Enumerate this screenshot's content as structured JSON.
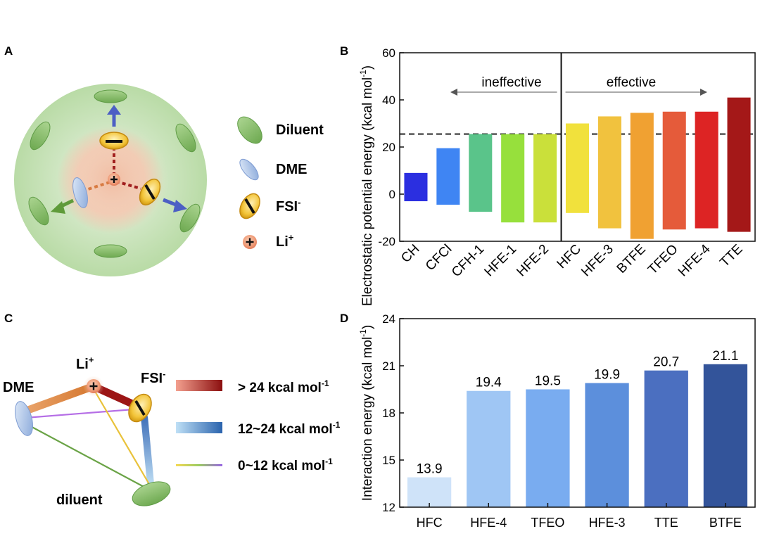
{
  "panels": {
    "a": {
      "letter": "A",
      "legend": [
        {
          "icon": "diluent-ellipse-icon",
          "label": "Diluent"
        },
        {
          "icon": "dme-ellipse-icon",
          "label": "DME"
        },
        {
          "icon": "fsi-anion-icon",
          "label": "FSI",
          "sup": "-"
        },
        {
          "icon": "li-cation-icon",
          "label": "Li",
          "sup": "+"
        }
      ]
    },
    "c": {
      "letter": "C",
      "nodes": {
        "dme": "DME",
        "li": "Li",
        "li_sup": "+",
        "fsi": "FSI",
        "fsi_sup": "-",
        "diluent": "diluent"
      },
      "legend": [
        {
          "label": "> 24 kcal mol",
          "sup": "-1",
          "gradient": [
            "#f3a08f",
            "#8b0f0f"
          ]
        },
        {
          "label": "12~24 kcal mol",
          "sup": "-1",
          "gradient": [
            "#bfe0f6",
            "#2a63ad"
          ]
        },
        {
          "label": "0~12 kcal mol",
          "sup": "-1",
          "gradient": [
            "#f4d33a",
            "#8bc34a",
            "#8a4fe0"
          ]
        }
      ]
    }
  },
  "chart_data": [
    {
      "panel": "B",
      "type": "bar",
      "subtype": "floating",
      "categories": [
        "CH",
        "CFCl",
        "CFH-1",
        "HFE-1",
        "HFE-2",
        "HFC",
        "HFE-3",
        "BTFE",
        "TFEO",
        "HFE-4",
        "TTE"
      ],
      "series": [
        {
          "ranges": [
            [
              -3,
              9
            ],
            [
              -4.5,
              19.5
            ],
            [
              -7.5,
              25.5
            ],
            [
              -12,
              25.5
            ],
            [
              -12,
              25.5
            ],
            [
              -8,
              30
            ],
            [
              -14.5,
              33
            ],
            [
              -19,
              34.5
            ],
            [
              -15,
              35
            ],
            [
              -14.5,
              35
            ],
            [
              -16,
              41
            ]
          ]
        }
      ],
      "colors": [
        "#2b2fe0",
        "#3f85f3",
        "#5ac48a",
        "#97e03c",
        "#cae03a",
        "#f1e13c",
        "#f1c23e",
        "#f0a132",
        "#e55b3a",
        "#dd2424",
        "#a41818"
      ],
      "ylabel": "Electrostatic potential energy (kcal mol",
      "ylabel_sup": "-1",
      "ylabel_tail": ")",
      "ylim": [
        -20,
        60
      ],
      "yticks": [
        -20,
        0,
        20,
        40,
        60
      ],
      "reference_line": 25.5,
      "divider_after_category": "HFE-2",
      "annotations": [
        "ineffective",
        "effective"
      ]
    },
    {
      "panel": "D",
      "type": "bar",
      "categories": [
        "HFC",
        "HFE-4",
        "TFEO",
        "HFE-3",
        "TTE",
        "BTFE"
      ],
      "values": [
        13.9,
        19.4,
        19.5,
        19.9,
        20.7,
        21.1
      ],
      "labels": [
        "13.9",
        "19.4",
        "19.5",
        "19.9",
        "20.7",
        "21.1"
      ],
      "colors": [
        "#cfe3f9",
        "#9fc6f4",
        "#79acf0",
        "#5c8fdc",
        "#4b6fc0",
        "#33549a"
      ],
      "ylabel": "Interaction energy (kcal mol",
      "ylabel_sup": "-1",
      "ylabel_tail": ")",
      "ylim": [
        12,
        24
      ],
      "yticks": [
        12,
        15,
        18,
        21,
        24
      ]
    }
  ]
}
